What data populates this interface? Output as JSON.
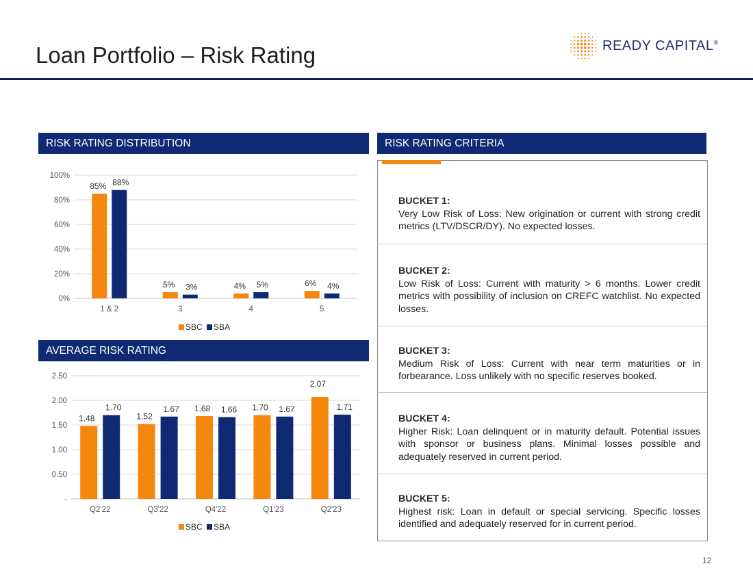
{
  "page": {
    "title": "Loan Portfolio – Risk Rating",
    "page_number": "12",
    "brand_name": "READY CAPITAL",
    "brand_mark": "®"
  },
  "colors": {
    "sbc": "#f5870f",
    "sba": "#0f2a73",
    "header_bg": "#0f2a73",
    "title_rule": "#0f2558"
  },
  "sections": {
    "distribution": "RISK RATING DISTRIBUTION",
    "average": "AVERAGE RISK RATING",
    "criteria": "RISK RATING CRITERIA"
  },
  "criteria": [
    {
      "title": "BUCKET 1:",
      "text": "Very Low Risk of Loss: New origination or current with strong credit metrics (LTV/DSCR/DY). No expected losses."
    },
    {
      "title": "BUCKET 2:",
      "text": "Low Risk of Loss: Current with maturity > 6 months. Lower credit metrics with possibility of inclusion on CREFC watchlist. No expected losses."
    },
    {
      "title": "BUCKET 3:",
      "text": "Medium Risk of Loss: Current with near term maturities or in forbearance. Loss unlikely with no specific reserves booked."
    },
    {
      "title": "BUCKET 4:",
      "text": "Higher Risk: Loan delinquent or in maturity default. Potential issues with sponsor or business plans. Minimal losses possible and adequately reserved in current period."
    },
    {
      "title": "BUCKET 5:",
      "text": "Highest risk: Loan in default or special servicing. Specific losses identified and adequately reserved for in current period."
    }
  ],
  "chart_data": [
    {
      "type": "bar",
      "categories": [
        "1 & 2",
        "3",
        "4",
        "5"
      ],
      "series": [
        {
          "name": "SBC",
          "values": [
            85,
            5,
            4,
            6
          ],
          "labels": [
            "85%",
            "5%",
            "4%",
            "6%"
          ]
        },
        {
          "name": "SBA",
          "values": [
            88,
            3,
            5,
            4
          ],
          "labels": [
            "88%",
            "3%",
            "5%",
            "4%"
          ]
        }
      ],
      "ylim": [
        0,
        100
      ],
      "yticks": [
        0,
        20,
        40,
        60,
        80,
        100
      ],
      "ytick_labels": [
        "0%",
        "20%",
        "40%",
        "60%",
        "80%",
        "100%"
      ],
      "grid": true,
      "legend": "bottom"
    },
    {
      "type": "bar",
      "categories": [
        "Q2'22",
        "Q3'22",
        "Q4'22",
        "Q1'23",
        "Q2'23"
      ],
      "series": [
        {
          "name": "SBC",
          "values": [
            1.48,
            1.52,
            1.68,
            1.7,
            2.07
          ],
          "labels": [
            "1.48",
            "1.52",
            "1.68",
            "1.70",
            "2.07"
          ]
        },
        {
          "name": "SBA",
          "values": [
            1.7,
            1.67,
            1.66,
            1.67,
            1.71
          ],
          "labels": [
            "1.70",
            "1.67",
            "1.66",
            "1.67",
            "1.71"
          ]
        }
      ],
      "ylim": [
        0,
        2.5
      ],
      "yticks": [
        0,
        0.5,
        1.0,
        1.5,
        2.0,
        2.5
      ],
      "ytick_labels": [
        "-",
        "0.50",
        "1.00",
        "1.50",
        "2.00",
        "2.50"
      ],
      "grid": true,
      "legend": "bottom"
    }
  ]
}
